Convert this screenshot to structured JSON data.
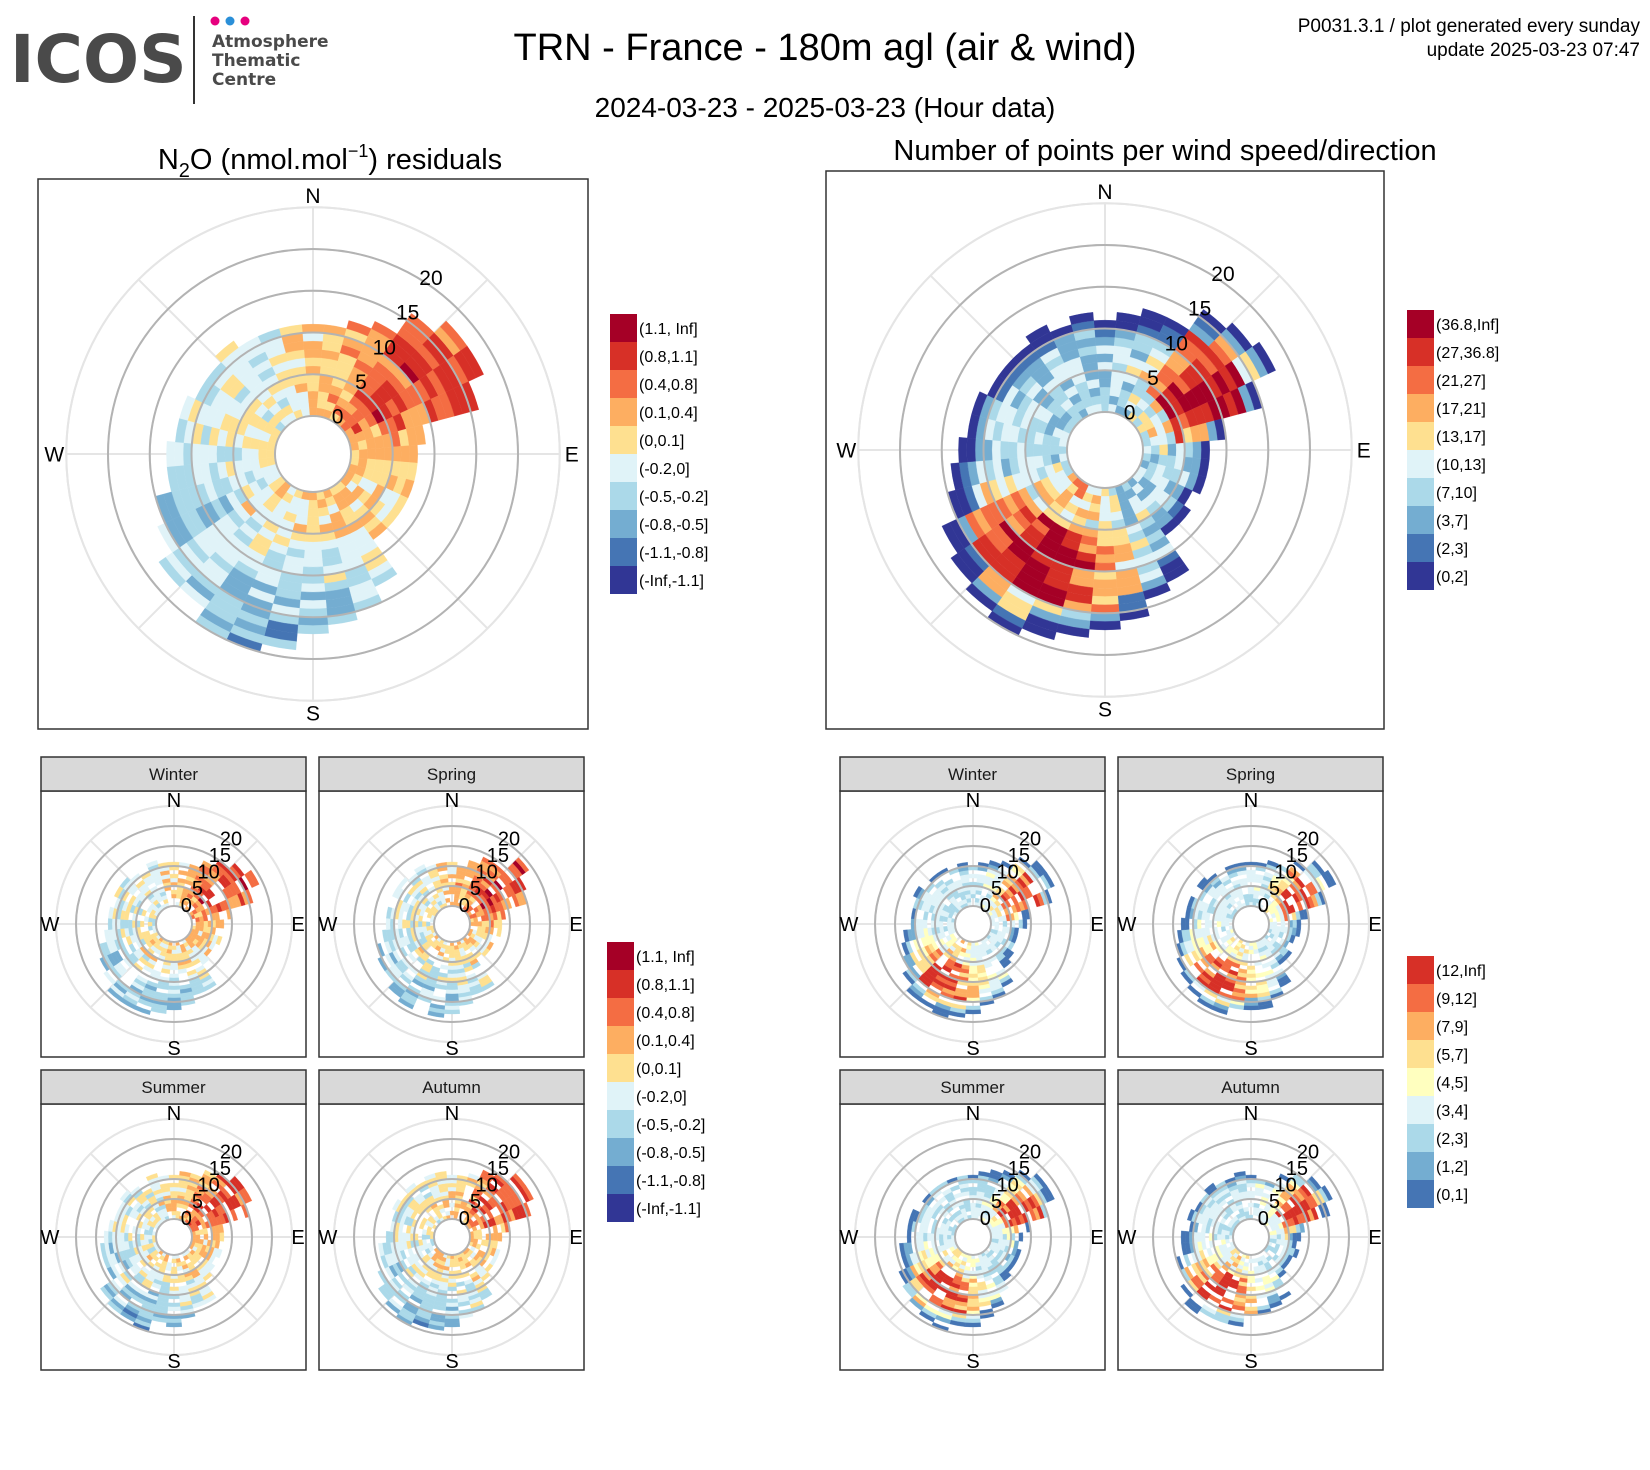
{
  "header": {
    "logo": {
      "wordmark": "ICOS",
      "sub1": "Atmosphere",
      "sub2": "Thematic",
      "sub3": "Centre",
      "dot_colors": [
        "#e6007e",
        "#2a8fd8",
        "#e6007e"
      ]
    },
    "title": "TRN - France - 180m agl (air & wind)",
    "subtitle": "2024-03-23 - 2025-03-23 (Hour data)",
    "meta_line1": "P0031.3.1 / plot generated every sunday",
    "meta_line2": "update  2025-03-23 07:47"
  },
  "palettes": {
    "residuals": [
      "#a50026",
      "#d73027",
      "#f46d43",
      "#fdae61",
      "#fee090",
      "#e0f3f8",
      "#abd9e9",
      "#74add1",
      "#4575b4",
      "#313695"
    ],
    "counts_main": [
      "#a50026",
      "#d73027",
      "#f46d43",
      "#fdae61",
      "#fee090",
      "#e0f3f8",
      "#abd9e9",
      "#74add1",
      "#4575b4",
      "#313695"
    ],
    "counts_seasonal": [
      "#d73027",
      "#f46d43",
      "#fdae61",
      "#fee090",
      "#ffffbf",
      "#e0f3f8",
      "#abd9e9",
      "#74add1",
      "#4575b4"
    ]
  },
  "chart_data": [
    {
      "type": "heatmap",
      "subtype": "polar wind rose",
      "title_main": "N",
      "title_sub": "2",
      "title_rest": "O (nmol.mol",
      "title_sup": "−1",
      "title_end": ") residuals",
      "radial_ticks": [
        "0",
        "5",
        "10",
        "15",
        "20"
      ],
      "radial_range": [
        0,
        20
      ],
      "compass": [
        "N",
        "E",
        "S",
        "W"
      ],
      "legend_labels": [
        "(1.1, Inf]",
        "(0.8,1.1]",
        "(0.4,0.8]",
        "(0.1,0.4]",
        "(0,0.1]",
        "(-0.2,0]",
        "(-0.5,-0.2]",
        "(-0.8,-0.5]",
        "(-1.1,-0.8]",
        "(-Inf,-1.1]"
      ]
    },
    {
      "type": "heatmap",
      "subtype": "polar wind rose",
      "title": "Number of points per wind speed/direction",
      "radial_ticks": [
        "0",
        "5",
        "10",
        "15",
        "20"
      ],
      "radial_range": [
        0,
        20
      ],
      "compass": [
        "N",
        "E",
        "S",
        "W"
      ],
      "legend_labels": [
        "(36.8,Inf]",
        "(27,36.8]",
        "(21,27]",
        "(17,21]",
        "(13,17]",
        "(10,13]",
        "(7,10]",
        "(3,7]",
        "(2,3]",
        "(0,2]"
      ]
    },
    {
      "type": "heatmap",
      "subtype": "seasonal polar wind roses (residuals)",
      "panels": [
        "Winter",
        "Spring",
        "Summer",
        "Autumn"
      ],
      "radial_ticks": [
        "0",
        "5",
        "10",
        "15",
        "20"
      ],
      "compass": [
        "N",
        "E",
        "S",
        "W"
      ],
      "legend_labels": [
        "(1.1, Inf]",
        "(0.8,1.1]",
        "(0.4,0.8]",
        "(0.1,0.4]",
        "(0,0.1]",
        "(-0.2,0]",
        "(-0.5,-0.2]",
        "(-0.8,-0.5]",
        "(-1.1,-0.8]",
        "(-Inf,-1.1]"
      ]
    },
    {
      "type": "heatmap",
      "subtype": "seasonal polar wind roses (counts)",
      "panels": [
        "Winter",
        "Spring",
        "Summer",
        "Autumn"
      ],
      "radial_ticks": [
        "0",
        "5",
        "10",
        "15",
        "20"
      ],
      "compass": [
        "N",
        "E",
        "S",
        "W"
      ],
      "legend_labels": [
        "(12,Inf]",
        "(9,12]",
        "(7,9]",
        "(5,7]",
        "(4,5]",
        "(3,4]",
        "(2,3]",
        "(1,2]",
        "(0,1]"
      ]
    }
  ]
}
